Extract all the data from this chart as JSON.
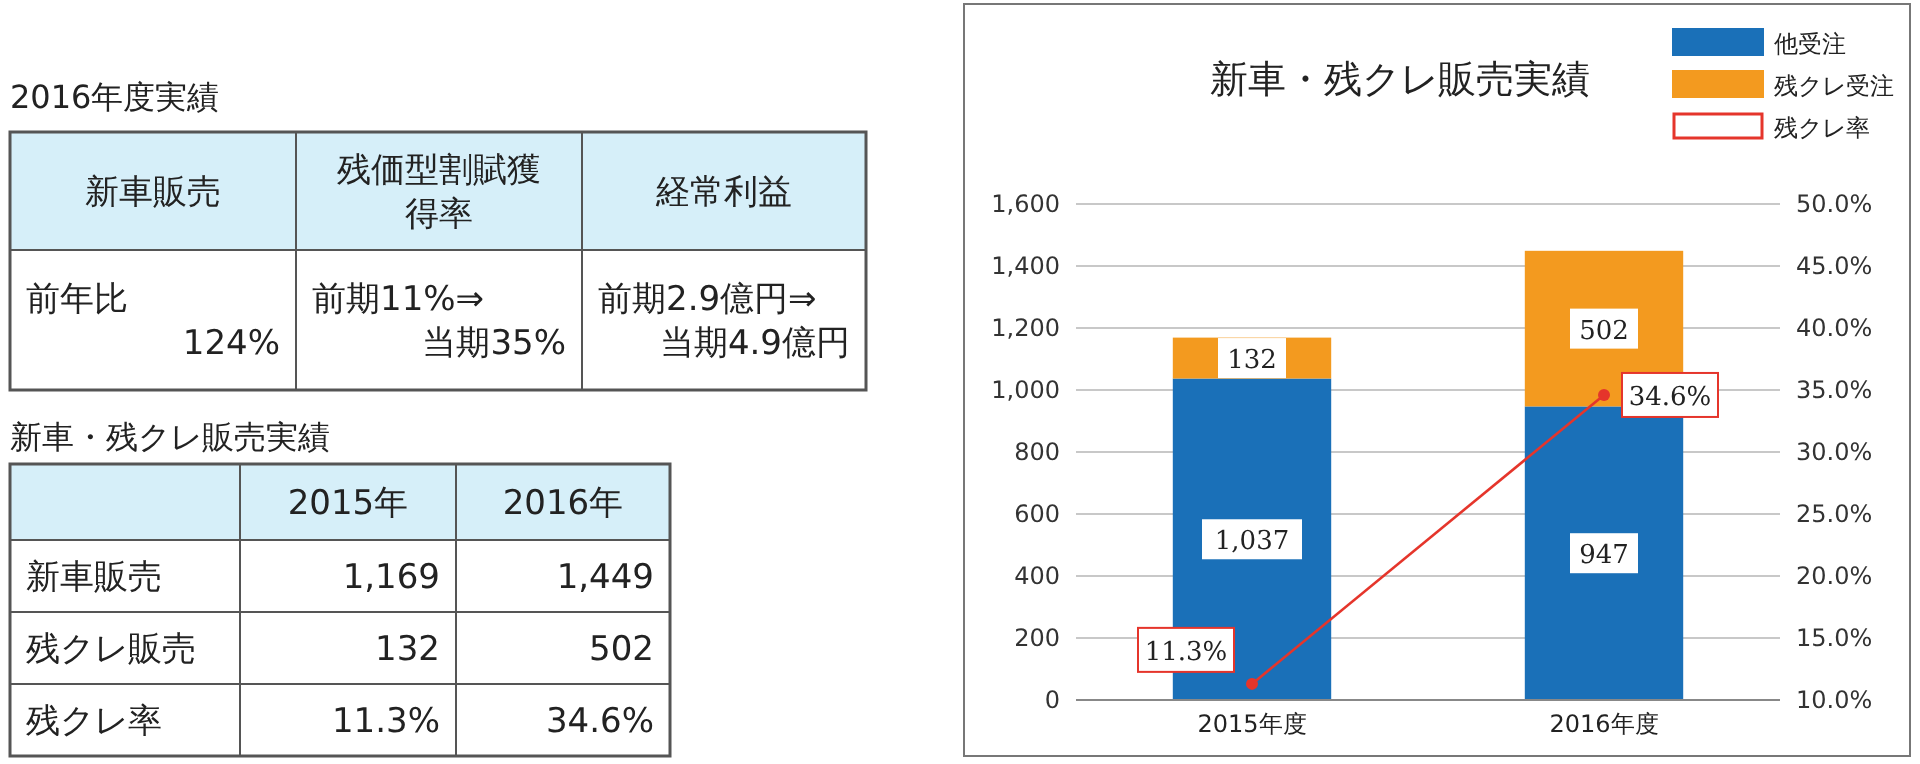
{
  "chart_data": [
    {
      "type": "other",
      "title": "2016年度実績",
      "categories": [
        "新車販売",
        "残価型割賦獲得率",
        "経常利益"
      ],
      "cell_labels": [
        [
          "前年比\n124%",
          "前期11%⇒\n当期35%",
          "前期2.9億円⇒\n当期4.9億円"
        ]
      ]
    },
    {
      "type": "other",
      "title": "新車・残クレ販売実績",
      "categories": [
        "2015年",
        "2016年"
      ],
      "y_categories": [
        "新車販売",
        "残クレ販売",
        "残クレ率"
      ],
      "cell_labels": [
        [
          "1,169",
          "1,449"
        ],
        [
          "132",
          "502"
        ],
        [
          "11.3%",
          "34.6%"
        ]
      ]
    },
    {
      "type": "bar",
      "title": "新車・残クレ販売実績",
      "stacked": true,
      "categories": [
        "2015年度",
        "2016年度"
      ],
      "series": [
        {
          "name": "他受注",
          "color": "#1a70b8",
          "values": [
            1037,
            947
          ],
          "value_labels": [
            "1,037",
            "947"
          ]
        },
        {
          "name": "残クレ受注",
          "color": "#f39a1f",
          "values": [
            132,
            502
          ],
          "value_labels": [
            "132",
            "502"
          ]
        },
        {
          "name": "残クレ率",
          "type": "line",
          "axis": "y2",
          "color": "#e5352b",
          "values": [
            11.3,
            34.6
          ],
          "value_labels": [
            "11.3%",
            "34.6%"
          ]
        }
      ],
      "ylim": [
        0,
        1600
      ],
      "yticks": [
        0,
        {
          "value": 200,
          "label": "200"
        },
        {
          "value": 400,
          "label": "400"
        },
        {
          "value": 600,
          "label": "600"
        },
        {
          "value": 800,
          "label": "800"
        },
        {
          "value": 1000,
          "label": "1,000"
        },
        {
          "value": 1200,
          "label": "1,200"
        },
        {
          "value": 1400,
          "label": "1,400"
        },
        {
          "value": 1600,
          "label": "1,600"
        }
      ],
      "y2lim": [
        10,
        50
      ],
      "y2ticks": [
        {
          "value": 10,
          "label": "10.0%"
        },
        {
          "value": 15,
          "label": "15.0%"
        },
        {
          "value": 20,
          "label": "20.0%"
        },
        {
          "value": 25,
          "label": "25.0%"
        },
        {
          "value": 30,
          "label": "30.0%"
        },
        {
          "value": 35,
          "label": "35.0%"
        },
        {
          "value": 40,
          "label": "40.0%"
        },
        {
          "value": 45,
          "label": "45.0%"
        },
        {
          "value": 50,
          "label": "50.0%"
        }
      ],
      "grid": "y",
      "legend": "top right",
      "marker": "circle"
    }
  ]
}
